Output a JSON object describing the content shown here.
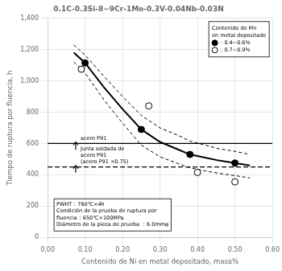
{
  "chart_data": {
    "type": "scatter",
    "title": "0.1C-0.3Si-8∼9Cr-1Mo-0.3V-0.04Nb-0.03N",
    "xlabel": "Contenido de Ni en metal depositado, masa%",
    "ylabel": "Tiempo de ruptura por fluencia, h",
    "xlim": [
      0.0,
      0.6
    ],
    "ylim": [
      0,
      1400
    ],
    "xticks": [
      {
        "value": 0.0,
        "label": "0.00"
      },
      {
        "value": 0.1,
        "label": "0.10"
      },
      {
        "value": 0.2,
        "label": "0.20"
      },
      {
        "value": 0.3,
        "label": "0.30"
      },
      {
        "value": 0.4,
        "label": "0.40"
      },
      {
        "value": 0.5,
        "label": "0.50"
      },
      {
        "value": 0.6,
        "label": "0.60"
      }
    ],
    "yticks": [
      0,
      200,
      400,
      600,
      800,
      {
        "value": 1000,
        "label": "1,000"
      },
      {
        "value": 1200,
        "label": "1,200"
      },
      {
        "value": 1400,
        "label": "1,400"
      }
    ],
    "grid": true,
    "legend": "upper right",
    "legend_title": "Contenido de Mn\nen metal depositado",
    "series": [
      {
        "type": "line",
        "line_style": "dashed",
        "color": "#000000",
        "x": [
          0.07,
          0.1,
          0.15,
          0.2,
          0.25,
          0.3,
          0.35,
          0.38,
          0.42,
          0.46,
          0.5,
          0.54
        ],
        "values": [
          1230,
          1165,
          1030,
          900,
          780,
          700,
          650,
          615,
          590,
          565,
          550,
          530
        ]
      },
      {
        "type": "line",
        "line_style": "dashed",
        "color": "#000000",
        "x": [
          0.07,
          0.1,
          0.15,
          0.2,
          0.25,
          0.3,
          0.35,
          0.38,
          0.42,
          0.46,
          0.5,
          0.54
        ],
        "values": [
          1120,
          1050,
          880,
          730,
          590,
          515,
          470,
          445,
          425,
          408,
          395,
          380
        ]
      },
      {
        "type": "line",
        "line_style": "solid",
        "color": "#000000",
        "x": [
          0.07,
          0.1,
          0.15,
          0.2,
          0.25,
          0.3,
          0.35,
          0.38,
          0.42,
          0.46,
          0.5,
          0.54
        ],
        "values": [
          1180,
          1115,
          960,
          820,
          690,
          610,
          560,
          530,
          510,
          490,
          475,
          460
        ]
      },
      {
        "name": ": 0.4∼0.6%",
        "type": "scatter",
        "marker": "filled_circle",
        "color": "#000000",
        "x": [
          0.1,
          0.25,
          0.38,
          0.5
        ],
        "values": [
          1115,
          690,
          530,
          475
        ]
      },
      {
        "name": ": 0.7∼0.9%",
        "type": "scatter",
        "marker": "open_circle",
        "color": "#000000",
        "x": [
          0.09,
          0.27,
          0.4,
          0.5
        ],
        "values": [
          1075,
          840,
          415,
          355
        ]
      }
    ],
    "hlines": [
      {
        "y": 600,
        "line_style": "solid",
        "color": "#000000"
      },
      {
        "y": 450,
        "line_style": "dashed",
        "color": "#000000"
      }
    ],
    "annotations": [
      {
        "text": "acero P91",
        "arrow": {
          "x": 0.075,
          "y_from": 560,
          "y_to": 610
        }
      },
      {
        "text": "Junta soldada de\nacero P91\n(acero P91 ×0.75)",
        "arrow": {
          "x": 0.075,
          "y_from": 415,
          "y_to": 460
        }
      }
    ],
    "note": "PWHT：760℃×4h\nCondición de la prueba de ruptura por\nfluencia：650℃×100MPa\nDiámetro de la pieza de prueba ：6.0mmφ"
  }
}
